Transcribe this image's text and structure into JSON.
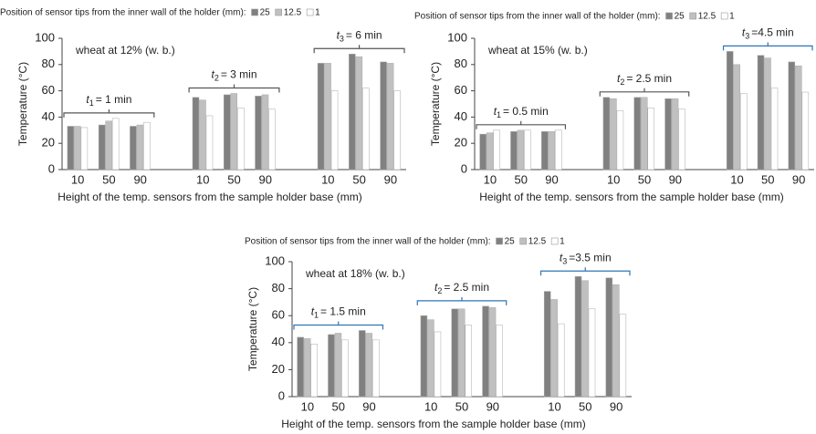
{
  "chart_data": [
    {
      "type": "bar",
      "legend_title": "Position of sensor tips from the inner wall of the holder (mm):",
      "annotation": "wheat at 12% (w. b.)",
      "y_label": "Temperature (°C)",
      "x_label": "Height of the temp. sensors from the sample holder base (mm)",
      "ylim": [
        0,
        100
      ],
      "yticks": [
        0,
        20,
        40,
        60,
        80,
        100
      ],
      "categories": [
        "10",
        "50",
        "90",
        "10",
        "50",
        "90",
        "10",
        "50",
        "90"
      ],
      "groups": [
        {
          "symbol": "t",
          "subscript": "1",
          "label": "= 1 min",
          "color": "#555555"
        },
        {
          "symbol": "t",
          "subscript": "2",
          "label": "= 3 min",
          "color": "#555555"
        },
        {
          "symbol": "t",
          "subscript": "3",
          "label": "= 6 min",
          "color": "#555555"
        }
      ],
      "series": [
        {
          "name": "25",
          "color": "#808080",
          "values": [
            33,
            34,
            33,
            55,
            57,
            56,
            81,
            88,
            82
          ]
        },
        {
          "name": "12.5",
          "color": "#c0c0c0",
          "values": [
            33,
            37,
            34,
            53,
            58,
            57,
            81,
            86,
            81
          ]
        },
        {
          "name": "1",
          "color": "#ffffff",
          "values": [
            32,
            39,
            36,
            41,
            47,
            46,
            60,
            62,
            60
          ]
        }
      ]
    },
    {
      "type": "bar",
      "legend_title": "Position of sensor tips from the inner wall of the holder (mm):",
      "annotation": "wheat at 15% (w. b.)",
      "y_label": "Temperature (°C)",
      "x_label": "Height of the temp. sensors from the sample holder base (mm)",
      "ylim": [
        0,
        100
      ],
      "yticks": [
        0,
        20,
        40,
        60,
        80,
        100
      ],
      "categories": [
        "10",
        "50",
        "90",
        "10",
        "50",
        "90",
        "10",
        "50",
        "90"
      ],
      "groups": [
        {
          "symbol": "t",
          "subscript": "1",
          "label": "= 0.5 min",
          "color": "#555555"
        },
        {
          "symbol": "t",
          "subscript": "2",
          "label": "= 2.5 min",
          "color": "#555555"
        },
        {
          "symbol": "t",
          "subscript": "3",
          "label": "=4.5 min",
          "color": "#2e75b6"
        }
      ],
      "series": [
        {
          "name": "25",
          "color": "#808080",
          "values": [
            27,
            29,
            29,
            55,
            55,
            54,
            90,
            87,
            82
          ]
        },
        {
          "name": "12.5",
          "color": "#c0c0c0",
          "values": [
            28,
            30,
            29,
            54,
            55,
            54,
            80,
            85,
            79
          ]
        },
        {
          "name": "1",
          "color": "#ffffff",
          "values": [
            30,
            30,
            30,
            45,
            47,
            46,
            58,
            62,
            59
          ]
        }
      ]
    },
    {
      "type": "bar",
      "legend_title": "Position of sensor tips from the inner wall of the holder (mm):",
      "annotation": "wheat at 18% (w. b.)",
      "y_label": "Temperature (°C)",
      "x_label": "Height of the temp. sensors from the sample holder base (mm)",
      "ylim": [
        0,
        100
      ],
      "yticks": [
        0,
        20,
        40,
        60,
        80,
        100
      ],
      "categories": [
        "10",
        "50",
        "90",
        "10",
        "50",
        "90",
        "10",
        "50",
        "90"
      ],
      "groups": [
        {
          "symbol": "t",
          "subscript": "1",
          "label": "= 1.5 min",
          "color": "#2e75b6"
        },
        {
          "symbol": "t",
          "subscript": "2",
          "label": "= 2.5 min",
          "color": "#2e75b6"
        },
        {
          "symbol": "t",
          "subscript": "3",
          "label": "=3.5 min",
          "color": "#2e75b6"
        }
      ],
      "series": [
        {
          "name": "25",
          "color": "#808080",
          "values": [
            44,
            46,
            49,
            60,
            65,
            67,
            78,
            89,
            88
          ]
        },
        {
          "name": "12.5",
          "color": "#c0c0c0",
          "values": [
            43,
            47,
            47,
            57,
            65,
            66,
            72,
            86,
            83
          ]
        },
        {
          "name": "1",
          "color": "#ffffff",
          "values": [
            39,
            42,
            42,
            48,
            53,
            53,
            54,
            65,
            61
          ]
        }
      ]
    }
  ]
}
